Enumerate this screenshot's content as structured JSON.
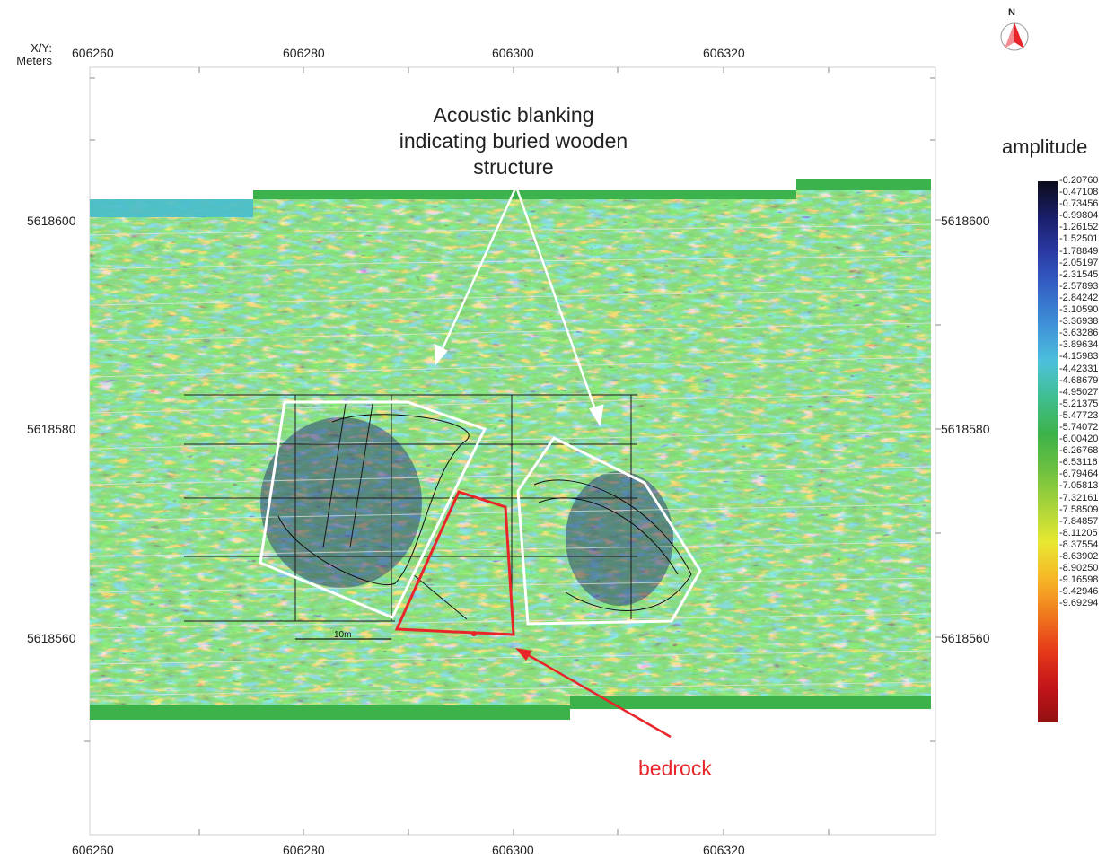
{
  "axis": {
    "title_line1": "X/Y:",
    "title_line2": "Meters",
    "x_ticks": [
      "606260",
      "606280",
      "606300",
      "606320"
    ],
    "y_ticks": [
      "5618600",
      "5618580",
      "5618560"
    ]
  },
  "north_arrow": {
    "label": "N",
    "icon": "north-arrow-icon"
  },
  "legend": {
    "title": "amplitude",
    "values": [
      "-0.20760",
      "-0.47108",
      "-0.73456",
      "-0.99804",
      "-1.26152",
      "-1.52501",
      "-1.78849",
      "-2.05197",
      "-2.31545",
      "-2.57893",
      "-2.84242",
      "-3.10590",
      "-3.36938",
      "-3.63286",
      "-3.89634",
      "-4.15983",
      "-4.42331",
      "-4.68679",
      "-4.95027",
      "-5.21375",
      "-5.47723",
      "-5.74072",
      "-6.00420",
      "-6.26768",
      "-6.53116",
      "-6.79464",
      "-7.05813",
      "-7.32161",
      "-7.58509",
      "-7.84857",
      "-8.11205",
      "-8.37554",
      "-8.63902",
      "-8.90250",
      "-9.16598",
      "-9.42946",
      "-9.69294"
    ],
    "colors": [
      "#0b0b1a",
      "#1a1f6b",
      "#2b3ba6",
      "#3566c8",
      "#3f93d8",
      "#4cc0dc",
      "#3fbf8f",
      "#3db24a",
      "#6dc040",
      "#a8d43a",
      "#e8e831",
      "#f6b726",
      "#f07a1e",
      "#e63a1a",
      "#c4151a",
      "#931012"
    ]
  },
  "annotations": {
    "blanking_line1": "Acoustic blanking",
    "blanking_line2": "indicating buried wooden",
    "blanking_line3": "structure",
    "bedrock": "bedrock",
    "scale_label": "10m"
  },
  "colors": {
    "outline": "#ffffff",
    "bedrock": "#e8262a",
    "grid": "#1a1a1a"
  }
}
